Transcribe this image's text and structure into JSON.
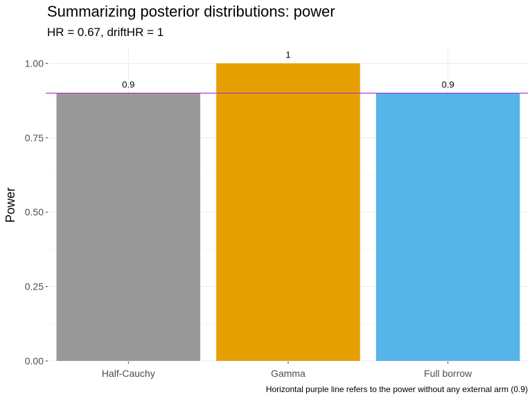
{
  "chart_data": {
    "type": "bar",
    "title": "Summarizing posterior distributions: power",
    "subtitle": "HR = 0.67, driftHR = 1",
    "xlabel": "",
    "ylabel": "Power",
    "caption": "Horizontal purple line refers to the power without any external arm (0.9)",
    "categories": [
      "Half-Cauchy",
      "Gamma",
      "Full borrow"
    ],
    "values": [
      0.9,
      1,
      0.9
    ],
    "data_labels": [
      "0.9",
      "1",
      "0.9"
    ],
    "bar_colors": [
      "#999999",
      "#E69F00",
      "#56B4E9"
    ],
    "ylim": [
      0,
      1.05
    ],
    "yticks": [
      0,
      0.25,
      0.5,
      0.75,
      1.0
    ],
    "ytick_labels": [
      "0.00",
      "0.25",
      "0.50",
      "0.75",
      "1.00"
    ],
    "reference_line": {
      "y": 0.9,
      "color": "#B22CC4"
    },
    "grid": true,
    "legend": "none"
  }
}
